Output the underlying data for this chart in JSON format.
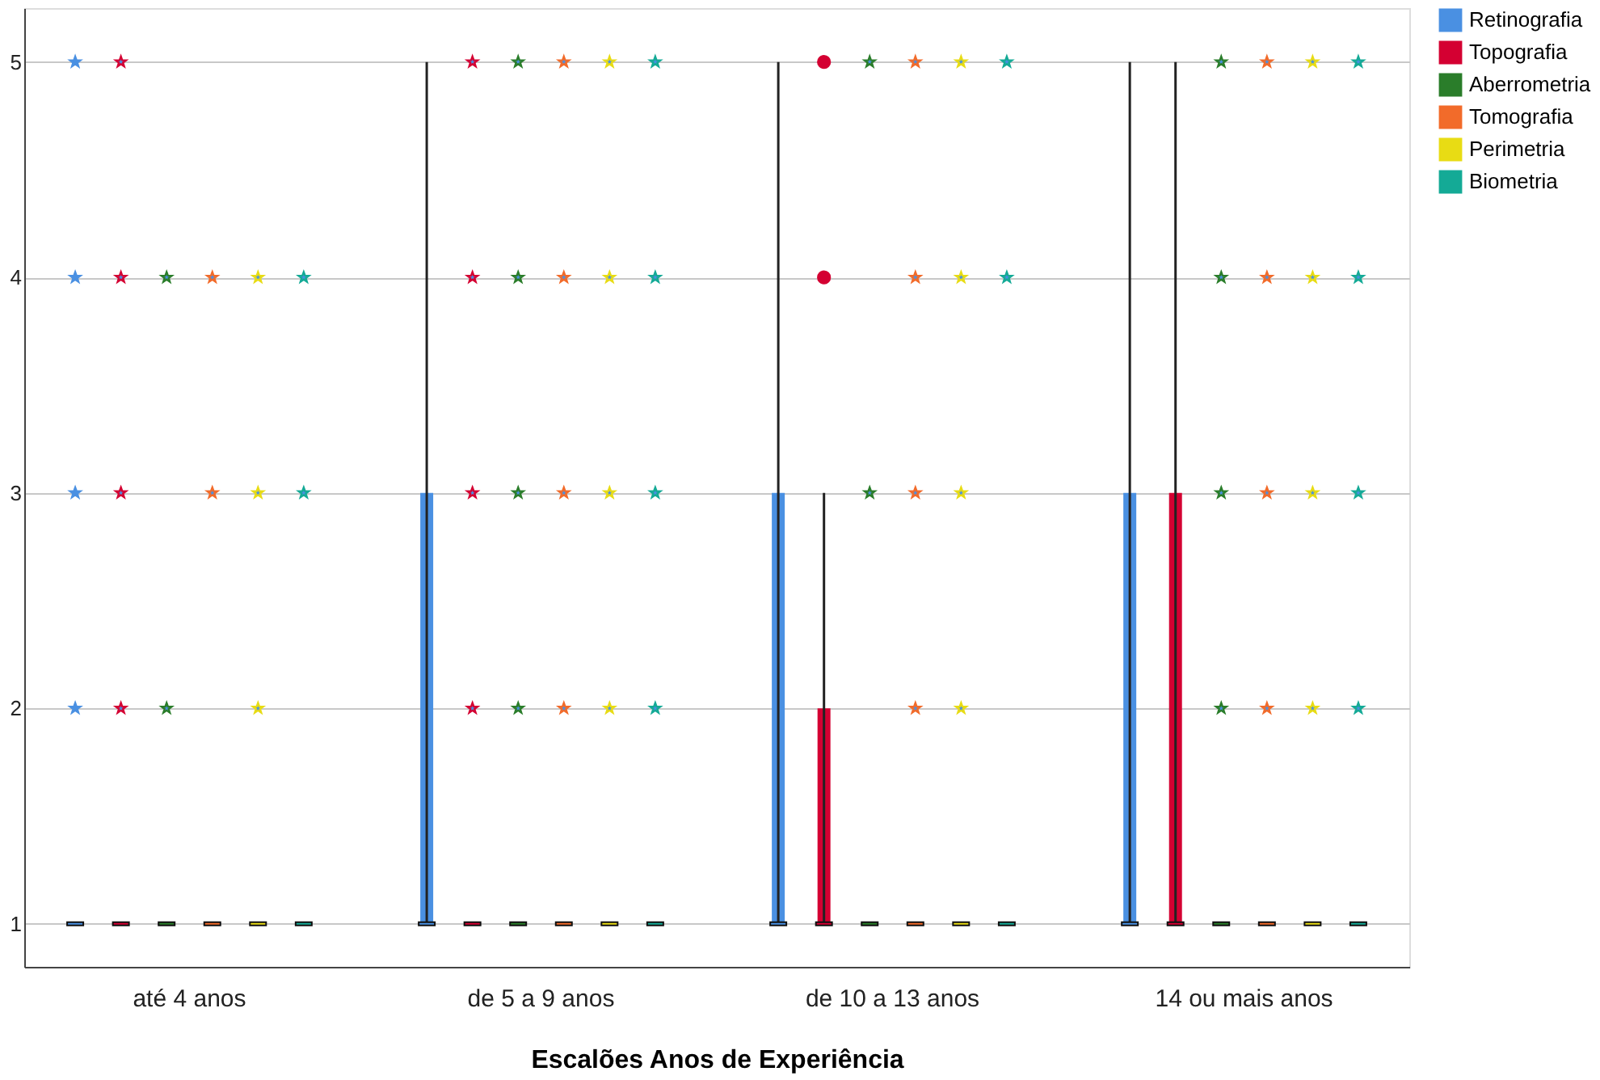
{
  "chart_data": {
    "type": "box",
    "xlabel": "Escalões Anos de Experiência",
    "categories": [
      "até 4 anos",
      "de 5 a 9 anos",
      "de 10 a 13 anos",
      "14 ou mais anos"
    ],
    "ylim": [
      0.8,
      5.25
    ],
    "yticks": [
      1,
      2,
      3,
      4,
      5
    ],
    "grid": "y",
    "legend": "top right",
    "series": [
      {
        "name": "Retinografia",
        "color": "#4a90e2",
        "boxes": [
          {
            "low": 1,
            "q1": 1,
            "median": 1,
            "q3": 1,
            "high": 1,
            "outliers": [
              2,
              3,
              4,
              5
            ]
          },
          {
            "low": 1,
            "q1": 1,
            "median": 1,
            "q3": 3,
            "high": 5
          },
          {
            "low": 1,
            "q1": 1,
            "median": 1,
            "q3": 3,
            "high": 5
          },
          {
            "low": 1,
            "q1": 1,
            "median": 1,
            "q3": 3,
            "high": 5
          }
        ]
      },
      {
        "name": "Topografia",
        "color": "#d40032",
        "boxes": [
          {
            "low": 1,
            "q1": 1,
            "median": 1,
            "q3": 1,
            "high": 1,
            "outliers": [
              2,
              3,
              4,
              5
            ]
          },
          {
            "low": 1,
            "q1": 1,
            "median": 1,
            "q3": 1,
            "high": 1,
            "outliers": [
              2,
              3,
              4,
              5
            ]
          },
          {
            "low": 1,
            "q1": 1,
            "median": 1,
            "q3": 2,
            "high": 3,
            "outliers": [
              4,
              5
            ]
          },
          {
            "low": 1,
            "q1": 1,
            "median": 1,
            "q3": 3,
            "high": 5
          }
        ]
      },
      {
        "name": "Aberrometria",
        "color": "#2a7d2a",
        "boxes": [
          {
            "low": 1,
            "q1": 1,
            "median": 1,
            "q3": 1,
            "high": 1,
            "outliers": [
              2,
              4
            ]
          },
          {
            "low": 1,
            "q1": 1,
            "median": 1,
            "q3": 1,
            "high": 1,
            "outliers": [
              2,
              3,
              4,
              5
            ]
          },
          {
            "low": 1,
            "q1": 1,
            "median": 1,
            "q3": 1,
            "high": 1,
            "outliers": [
              3,
              5
            ]
          },
          {
            "low": 1,
            "q1": 1,
            "median": 1,
            "q3": 1,
            "high": 1,
            "outliers": [
              2,
              3,
              4,
              5
            ]
          }
        ]
      },
      {
        "name": "Tomografia",
        "color": "#f26b2a",
        "boxes": [
          {
            "low": 1,
            "q1": 1,
            "median": 1,
            "q3": 1,
            "high": 1,
            "outliers": [
              3,
              4
            ]
          },
          {
            "low": 1,
            "q1": 1,
            "median": 1,
            "q3": 1,
            "high": 1,
            "outliers": [
              2,
              3,
              4,
              5
            ]
          },
          {
            "low": 1,
            "q1": 1,
            "median": 1,
            "q3": 1,
            "high": 1,
            "outliers": [
              2,
              3,
              4,
              5
            ]
          },
          {
            "low": 1,
            "q1": 1,
            "median": 1,
            "q3": 1,
            "high": 1,
            "outliers": [
              2,
              3,
              4,
              5
            ]
          }
        ]
      },
      {
        "name": "Perimetria",
        "color": "#e8dc14",
        "boxes": [
          {
            "low": 1,
            "q1": 1,
            "median": 1,
            "q3": 1,
            "high": 1,
            "outliers": [
              2,
              3,
              4
            ]
          },
          {
            "low": 1,
            "q1": 1,
            "median": 1,
            "q3": 1,
            "high": 1,
            "outliers": [
              2,
              3,
              4,
              5
            ]
          },
          {
            "low": 1,
            "q1": 1,
            "median": 1,
            "q3": 1,
            "high": 1,
            "outliers": [
              2,
              3,
              4,
              5
            ]
          },
          {
            "low": 1,
            "q1": 1,
            "median": 1,
            "q3": 1,
            "high": 1,
            "outliers": [
              2,
              3,
              4,
              5
            ]
          }
        ]
      },
      {
        "name": "Biometria",
        "color": "#14aa96",
        "boxes": [
          {
            "low": 1,
            "q1": 1,
            "median": 1,
            "q3": 1,
            "high": 1,
            "outliers": [
              3,
              4
            ]
          },
          {
            "low": 1,
            "q1": 1,
            "median": 1,
            "q3": 1,
            "high": 1,
            "outliers": [
              2,
              3,
              4,
              5
            ]
          },
          {
            "low": 1,
            "q1": 1,
            "median": 1,
            "q3": 1,
            "high": 1,
            "outliers": [
              4,
              5
            ]
          },
          {
            "low": 1,
            "q1": 1,
            "median": 1,
            "q3": 1,
            "high": 1,
            "outliers": [
              2,
              3,
              4,
              5
            ]
          }
        ]
      }
    ]
  }
}
